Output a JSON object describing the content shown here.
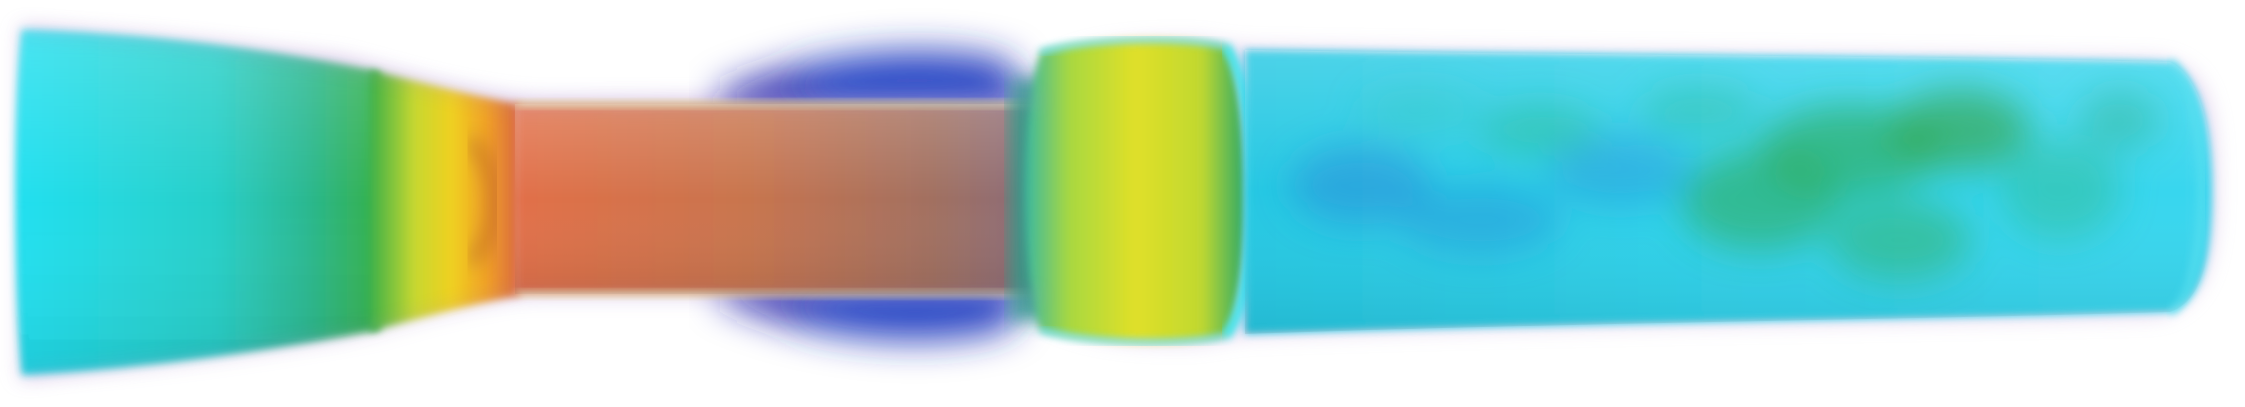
{
  "scene": {
    "subject": "flow-visualization",
    "background_color": "#ffffff",
    "colormap": {
      "name": "jet",
      "stops": [
        "#1a1aa0",
        "#2a58d8",
        "#1fd8ee",
        "#2fc8b0",
        "#2fa84a",
        "#d8e020",
        "#f0a020",
        "#d86040",
        "#b07060"
      ]
    },
    "regions": [
      {
        "name": "inlet-reservoir",
        "dominant_color": "#22d4e6"
      },
      {
        "name": "nozzle-contraction",
        "dominant_color": "#e8d020"
      },
      {
        "name": "throat-core",
        "dominant_color": "#d26a48"
      },
      {
        "name": "recirculation-zone",
        "dominant_color": "#1c20a8"
      },
      {
        "name": "shock-disc",
        "dominant_color": "#d6e020"
      },
      {
        "name": "downstream-duct",
        "dominant_color": "#30d0ea"
      },
      {
        "name": "turbulent-patches",
        "dominant_color": "#2ea850"
      }
    ]
  }
}
